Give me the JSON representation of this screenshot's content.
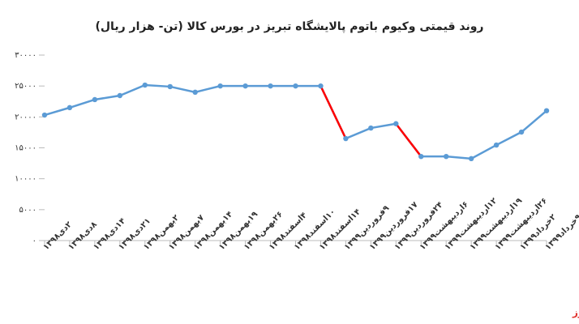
{
  "chart_data": {
    "type": "line",
    "title": "روند قیمتی وکیوم باتوم پالایشگاه تبریز در بورس کالا (تن- هزار ریال)",
    "categories": [
      "۲دی۱۳۹۸",
      "۸دی۱۳۹۸",
      "۱۴دی۱۳۹۸",
      "۲۱دی۱۳۹۸",
      "۲بهمن۱۳۹۸",
      "۷بهمن۱۳۹۸",
      "۱۴بهمن۱۳۹۸",
      "۱۹بهمن۱۳۹۸",
      "۲۶بهمن۱۳۹۸",
      "۴اسفند۱۳۹۸",
      "۱۰اسفند۱۳۹۸",
      "۱۴اسفند۱۳۹۸",
      "۹فروردین۱۳۹۹",
      "۱۷فروردین۱۳۹۹",
      "۲۴فروردین۱۳۹۹",
      "۶اردیبهشت۱۳۹۹",
      "۱۲اردیبهشت۱۳۹۹",
      "۱۹اردیبهشت۱۳۹۹",
      "۲۶اردیبهشت۱۳۹۹",
      "۲خرداد۱۳۹۹",
      "۹خرداد۱۳۹۹"
    ],
    "values": [
      20300,
      21500,
      22800,
      23450,
      25150,
      24900,
      24000,
      25000,
      25000,
      25000,
      25000,
      25000,
      16500,
      18200,
      18900,
      13600,
      13600,
      13250,
      15450,
      17550,
      21000
    ],
    "color": "#5b9bd5",
    "segment_colors": [
      "#5b9bd5",
      "#5b9bd5",
      "#5b9bd5",
      "#5b9bd5",
      "#5b9bd5",
      "#5b9bd5",
      "#5b9bd5",
      "#5b9bd5",
      "#5b9bd5",
      "#5b9bd5",
      "#5b9bd5",
      "#ff0000",
      "#5b9bd5",
      "#5b9bd5",
      "#ff0000",
      "#5b9bd5",
      "#5b9bd5",
      "#5b9bd5",
      "#5b9bd5",
      "#5b9bd5"
    ],
    "ylim": [
      0,
      30000
    ],
    "yticks": [
      {
        "value": 0,
        "label": "۰"
      },
      {
        "value": 5000,
        "label": "۵۰۰۰"
      },
      {
        "value": 10000,
        "label": "۱۰۰۰۰"
      },
      {
        "value": 15000,
        "label": "۱۵۰۰۰"
      },
      {
        "value": 20000,
        "label": "۲۰۰۰۰"
      },
      {
        "value": 25000,
        "label": "۲۵۰۰۰"
      },
      {
        "value": 30000,
        "label": "۳۰۰۰۰"
      }
    ],
    "grid": false,
    "watermark": "بورس نیوز"
  }
}
